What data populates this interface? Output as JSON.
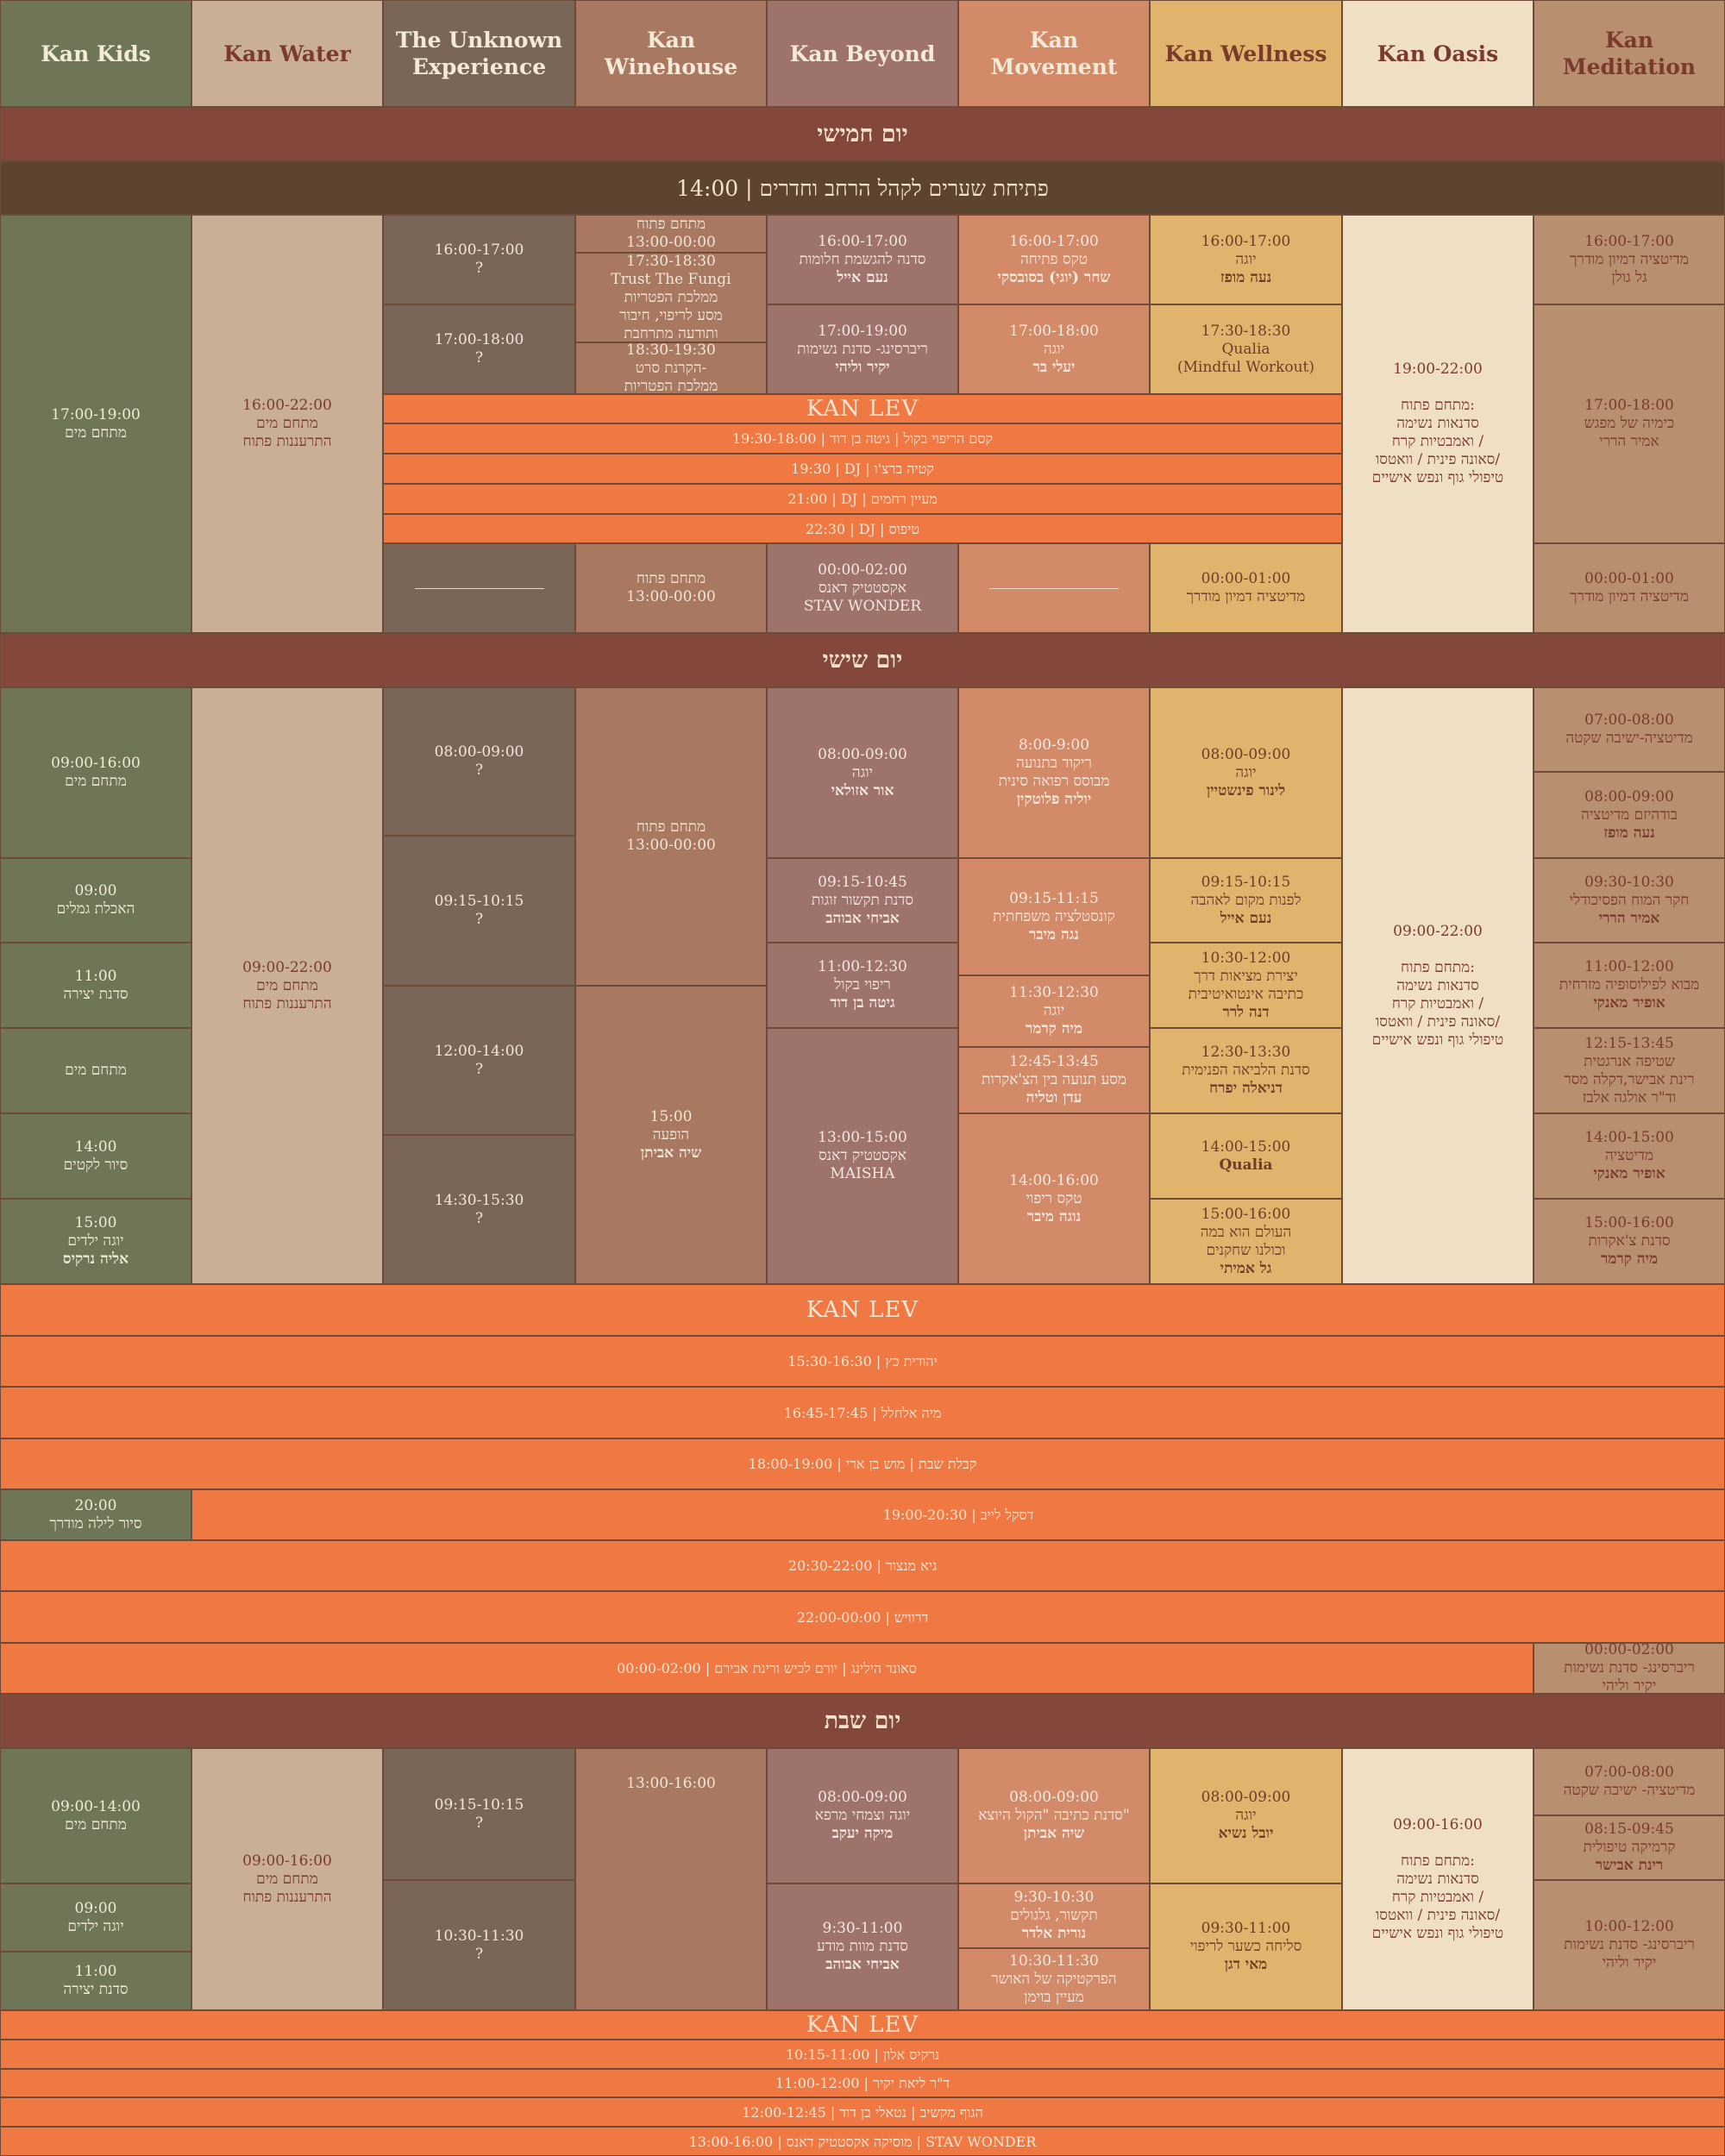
{
  "colors": {
    "kids": "#6e7657",
    "water": "#c9af96",
    "unknown": "#7a6658",
    "winehouse": "#a87860",
    "beyond": "#9d736b",
    "movement": "#d28a69",
    "wellness": "#e0b46c",
    "oasis": "#efdfc4",
    "meditation": "#b88f6f",
    "day": "#83473b",
    "gate": "#5d4431",
    "lev": "#f07943"
  },
  "columns": [
    {
      "id": "kids",
      "name": "Kan Kids"
    },
    {
      "id": "water",
      "name": "Kan Water"
    },
    {
      "id": "unknown",
      "name": "The Unknown Experience"
    },
    {
      "id": "winehouse",
      "name": "Kan Winehouse"
    },
    {
      "id": "beyond",
      "name": "Kan Beyond"
    },
    {
      "id": "movement",
      "name": "Kan Movement"
    },
    {
      "id": "wellness",
      "name": "Kan Wellness"
    },
    {
      "id": "oasis",
      "name": "Kan Oasis"
    },
    {
      "id": "meditation",
      "name": "Kan Meditation"
    }
  ],
  "days": {
    "thu": "יום חמישי",
    "fri": "יום שישי",
    "sat": "יום שבת"
  },
  "gate_opening": "14:00 | פתיחת שערים לקהל הרחב וחדרים",
  "kan_lev": "KAN LEV",
  "thursday": {
    "kids": [
      "17:00-19:00",
      "מתחם מים"
    ],
    "water": [
      "16:00-22:00",
      "מתחם מים",
      "התרעננות פתוח"
    ],
    "unknown_1": [
      "16:00-17:00",
      "?"
    ],
    "unknown_2": [
      "17:00-18:00",
      "?"
    ],
    "winehouse_1": [
      "מתחם פתוח",
      "13:00-00:00"
    ],
    "winehouse_2": [
      "17:30-18:30",
      "Trust The Fungi",
      "ממלכת הפטריות",
      "מסע לריפוי, חיבור",
      "ותודעה מתרחבת"
    ],
    "winehouse_3": [
      "18:30-19:30",
      "הקרנת סרט-",
      "ממלכת הפטריות"
    ],
    "beyond_1": [
      "16:00-17:00",
      "סדנה להגשמת חלומות",
      "נעם אייל"
    ],
    "beyond_2": [
      "17:00-19:00",
      "ריברסינג- סדנת נשימות",
      "יקיר וליהי"
    ],
    "movement_1": [
      "16:00-17:00",
      "טקס פתיחה",
      "שחר (יוגי) בסובסקי"
    ],
    "movement_2": [
      "17:00-18:00",
      "יוגה",
      "יעלי בר"
    ],
    "wellness_1": [
      "16:00-17:00",
      "יוגה",
      "נעה מופז"
    ],
    "wellness_2": [
      "17:30-18:30",
      "Qualia",
      "(Mindful Workout)"
    ],
    "oasis": [
      "19:00-22:00",
      "",
      "מתחם פתוח:",
      "סדנאות נשימה",
      "ואמבטיות קרח /",
      "סאונה פינית / וואטסו/",
      "טיפולי גוף ונפש אישיים"
    ],
    "meditation_1": [
      "16:00-17:00",
      "מדיטציה דמיון מודרך",
      "גל גולן"
    ],
    "meditation_2": [
      "17:00-18:00",
      "כימיה של מפגש",
      "אמיר הררי"
    ],
    "lev_1": "19:30-18:00 | קסם הריפוי בקול | גיטה בן דוד",
    "lev_2": "19:30 | DJ | קטיה ברצ'ו",
    "lev_3": "21:00 | DJ | מעיין רחמים",
    "lev_4": "22:30 | DJ | טיפוס",
    "winehouse_late": [
      "מתחם פתוח",
      "13:00-00:00"
    ],
    "beyond_late": [
      "00:00-02:00",
      "אקסטטיק דאנס",
      "STAV WONDER"
    ],
    "wellness_late": [
      "00:00-01:00",
      "מדיטציה דמיון מודרך"
    ],
    "meditation_late": [
      "00:00-01:00",
      "מדיטציה דמיון מודרך"
    ]
  },
  "friday": {
    "kids_1": [
      "09:00-16:00",
      "מתחם מים"
    ],
    "kids_2": [
      "09:00",
      "האכלת גמלים"
    ],
    "kids_3": [
      "11:00",
      "סדנת יצירה"
    ],
    "kids_4": [
      "מתחם מים"
    ],
    "kids_5": [
      "14:00",
      "סיור לקטים"
    ],
    "kids_6": [
      "15:00",
      "יוגה ילדים",
      "אליה נרקיס"
    ],
    "water": [
      "09:00-22:00",
      "מתחם מים",
      "התרעננות פתוח"
    ],
    "unknown_1": [
      "08:00-09:00",
      "?"
    ],
    "unknown_2": [
      "09:15-10:15",
      "?"
    ],
    "unknown_3": [
      "12:00-14:00",
      "?"
    ],
    "unknown_4": [
      "14:30-15:30",
      "?"
    ],
    "winehouse_1": [
      "מתחם פתוח",
      "13:00-00:00"
    ],
    "winehouse_2": [
      "15:00",
      "הופעה",
      "שיה אביתן"
    ],
    "beyond_1": [
      "08:00-09:00",
      "יוגה",
      "אור אזולאי"
    ],
    "beyond_2": [
      "09:15-10:45",
      "סדנת תקשור זוגות",
      "אביחי אבוהב"
    ],
    "beyond_3": [
      "11:00-12:30",
      "ריפוי בקול",
      "גיטה בן דוד"
    ],
    "beyond_4": [
      "13:00-15:00",
      "אקסטטיק דאנס",
      "MAISHA"
    ],
    "movement_1": [
      "8:00-9:00",
      "ריקוד בתנועה",
      "מבוסס רפואה סינית",
      "יוליה פלוטקין"
    ],
    "movement_2": [
      "09:15-11:15",
      "קונסטלציה משפחתית",
      "נגה מיבר"
    ],
    "movement_3": [
      "11:30-12:30",
      "יוגה",
      "מיה קרמר"
    ],
    "movement_4": [
      "12:45-13:45",
      "מסע תנועה בין הצ'אקרות",
      "עדן וטליה"
    ],
    "movement_5": [
      "14:00-16:00",
      "טקס ריפוי",
      "נוגה מיבר"
    ],
    "wellness_1": [
      "08:00-09:00",
      "יוגה",
      "לינור פינשטיין"
    ],
    "wellness_2": [
      "09:15-10:15",
      "לפנות מקום לאהבה",
      "נעם אייל"
    ],
    "wellness_3": [
      "10:30-12:00",
      "יצירת מציאות דרך",
      "כתיבה אינטואיטיבית",
      "דנה לרר"
    ],
    "wellness_4": [
      "12:30-13:30",
      "סדנת הלביאה הפנימית",
      "דניאלה יפרח"
    ],
    "wellness_5": [
      "14:00-15:00",
      "Qualia"
    ],
    "wellness_6": [
      "15:00-16:00",
      "העולם הוא במה",
      "וכולנו שחקנים",
      "גל אמיתי"
    ],
    "oasis": [
      "09:00-22:00",
      "",
      "מתחם פתוח:",
      "סדנאות נשימה",
      "ואמבטיות קרח /",
      "סאונה פינית / וואטסו/",
      "טיפולי גוף ונפש אישיים"
    ],
    "meditation_1": [
      "07:00-08:00",
      "מדיטציה-ישיבה שקטה"
    ],
    "meditation_2": [
      "08:00-09:00",
      "בודהיזם מדיטציה",
      "נעה מופז"
    ],
    "meditation_3": [
      "09:30-10:30",
      "חקר המוח הפסיכודלי",
      "אמיר הררי"
    ],
    "meditation_4": [
      "11:00-12:00",
      "מבוא לפילוסופיה מזרחית",
      "אופיר מאנקי"
    ],
    "meditation_5": [
      "12:15-13:45",
      "שטיפה אנרגטית",
      "רינת אבישר,דקלה מסר",
      "וד\"ר אולגה אלבז"
    ],
    "meditation_6": [
      "14:00-15:00",
      "מדיטציה",
      "אופיר מאנקי"
    ],
    "meditation_7": [
      "15:00-16:00",
      "סדנת צ'אקרות",
      "מיה קרמר"
    ],
    "kids_night": [
      "20:00",
      "סיור לילה מודרך"
    ],
    "meditation_night": [
      "00:00-02:00",
      "ריברסינג- סדנת נשימות",
      "יקיר וליהי"
    ],
    "lev_1": "15:30-16:30 | יהודית כץ",
    "lev_2": "16:45-17:45 | מיה אלחלל",
    "lev_3": "18:00-19:00 | קבלת שבת | מוש בן ארי",
    "lev_4": "19:00-20:30 | דסקל לייב",
    "lev_5": "20:30-22:00 | גיא מנצור",
    "lev_6": "22:00-00:00 | דרוויש",
    "lev_7": "00:00-02:00 | סאונד הילינג | יורם לכיש ורינת אבירם"
  },
  "saturday": {
    "kids_1": [
      "09:00-14:00",
      "מתחם מים"
    ],
    "kids_2": [
      "09:00",
      "יוגה ילדים"
    ],
    "kids_3": [
      "11:00",
      "סדנת יצירה"
    ],
    "water": [
      "09:00-16:00",
      "מתחם מים",
      "התרעננות פתוח"
    ],
    "unknown_1": [
      "09:15-10:15",
      "?"
    ],
    "unknown_2": [
      "10:30-11:30",
      "?"
    ],
    "winehouse": [
      "13:00-16:00"
    ],
    "beyond_1": [
      "08:00-09:00",
      "יוגה וצמחי מרפא",
      "מיקה יעקב"
    ],
    "beyond_2": [
      "9:30-11:00",
      "סדנת מוות מודע",
      "אביחי אבוהב"
    ],
    "movement_1": [
      "08:00-09:00",
      "סדנת כתיבה \"הקול היוצא\"",
      "שיה אביתן"
    ],
    "movement_2": [
      "9:30-10:30",
      "תקשור, גלגולים",
      "נורית אלדר"
    ],
    "movement_3": [
      "10:30-11:30",
      "הפרקטיקה של האושר",
      "מעיין בוימן"
    ],
    "wellness_1": [
      "08:00-09:00",
      "יוגה",
      "יובל נשיא"
    ],
    "wellness_2": [
      "09:30-11:00",
      "סליחה כשער לריפוי",
      "מאי דגן"
    ],
    "oasis": [
      "09:00-16:00",
      "",
      "מתחם פתוח:",
      "סדנאות נשימה",
      "ואמבטיות קרח /",
      "סאונה פינית / וואטסו/",
      "טיפולי גוף ונפש אישיים"
    ],
    "meditation_1": [
      "07:00-08:00",
      "מדיטציה- ישיבה שקטה"
    ],
    "meditation_2": [
      "08:15-09:45",
      "קרמיקה טיפולית",
      "רינת אבישר"
    ],
    "meditation_3": [
      "10:00-12:00",
      "ריברסינג- סדנת נשימות",
      "יקיר וליהי"
    ],
    "lev_1": "10:15-11:00 | נרקיס אלון",
    "lev_2": "11:00-12:00 | ד\"ר ליאת יקיר",
    "lev_3": "12:00-12:45 | הגוף מקשיב | נטאלי בן דוד",
    "lev_4": "13:00-16:00 | מוסיקה אקסטטיק דאנס | STAV WONDER"
  }
}
